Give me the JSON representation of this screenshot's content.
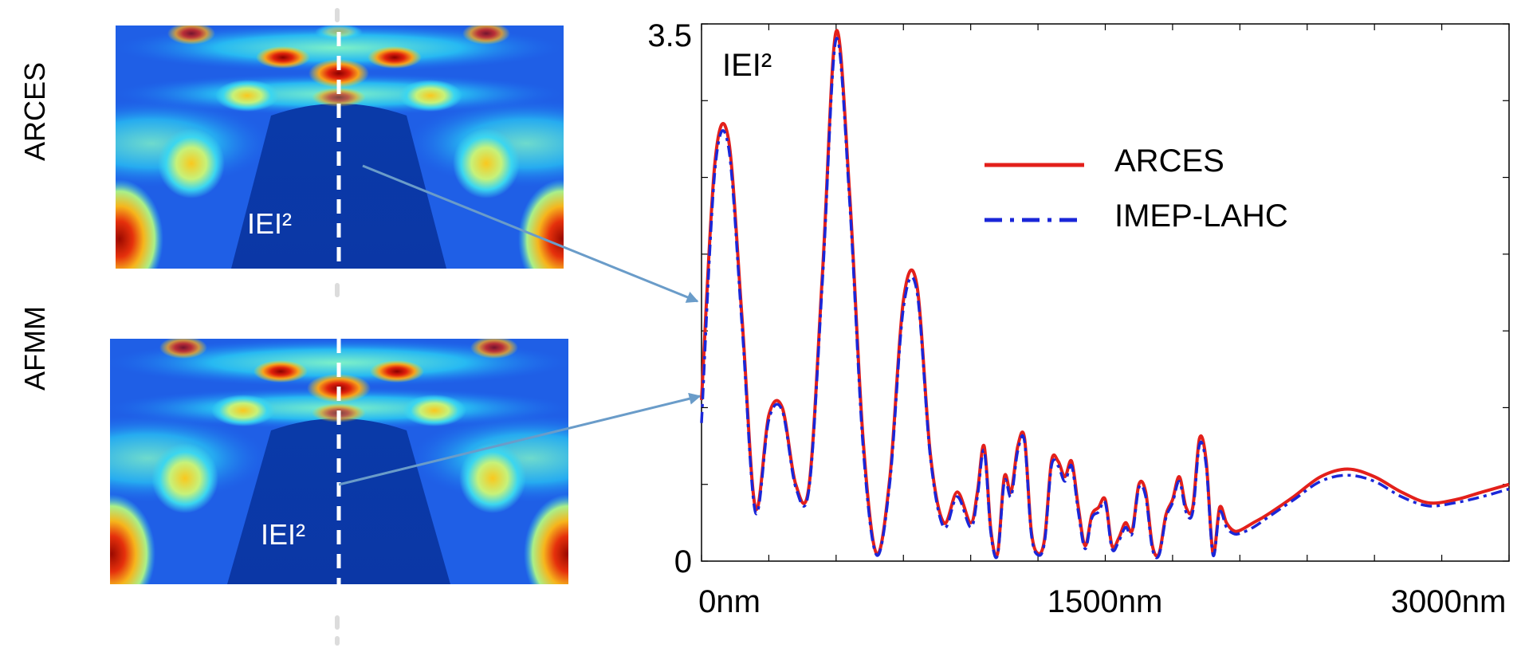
{
  "maps": [
    {
      "name": "ARCES",
      "label": "ARCES",
      "field_label": "IEI²"
    },
    {
      "name": "AFMM",
      "label": "AFMM",
      "field_label": "IEI²"
    }
  ],
  "colors": {
    "arces": "#e3201b",
    "imep": "#1a26d8",
    "arrow": "#6a9cc9",
    "cut_line": "#ffffff"
  },
  "chart_data": {
    "type": "line",
    "title": "",
    "ylabel": "IEI²",
    "xlabel": "",
    "ylim": [
      0,
      3.5
    ],
    "xlim": [
      0,
      3000
    ],
    "x_tick_labels": [
      {
        "value": 0,
        "label": "0nm"
      },
      {
        "value": 1500,
        "label": "1500nm"
      },
      {
        "value": 3000,
        "label": "3000nm"
      }
    ],
    "y_tick_labels": [
      {
        "value": 0,
        "label": "0"
      },
      {
        "value": 3.5,
        "label": "3.5"
      }
    ],
    "grid": false,
    "legend_position": "top-right",
    "series": [
      {
        "name": "ARCES",
        "style": "solid",
        "color": "#e3201b",
        "x": [
          0,
          50,
          100,
          150,
          200,
          250,
          300,
          350,
          400,
          450,
          500,
          550,
          600,
          650,
          700,
          750,
          800,
          850,
          900,
          950,
          1000,
          1025,
          1050,
          1075,
          1100,
          1125,
          1150,
          1175,
          1200,
          1225,
          1250,
          1275,
          1300,
          1325,
          1350,
          1375,
          1400,
          1425,
          1450,
          1475,
          1500,
          1525,
          1550,
          1575,
          1600,
          1625,
          1650,
          1675,
          1700,
          1725,
          1750,
          1775,
          1800,
          1825,
          1850,
          1875,
          1900,
          1925,
          1950,
          1975,
          2000,
          2050,
          2100,
          2200,
          2300,
          2400,
          2500,
          2600,
          2700,
          2800,
          2900,
          3000
        ],
        "y": [
          1.05,
          2.6,
          2.75,
          1.6,
          0.35,
          0.95,
          1.0,
          0.5,
          0.5,
          1.9,
          3.45,
          2.4,
          0.8,
          0.05,
          0.55,
          1.7,
          1.8,
          0.7,
          0.25,
          0.45,
          0.25,
          0.45,
          0.75,
          0.2,
          0.05,
          0.55,
          0.45,
          0.75,
          0.8,
          0.2,
          0.05,
          0.15,
          0.65,
          0.65,
          0.55,
          0.65,
          0.35,
          0.1,
          0.3,
          0.35,
          0.4,
          0.1,
          0.15,
          0.25,
          0.2,
          0.5,
          0.45,
          0.1,
          0.05,
          0.3,
          0.4,
          0.55,
          0.35,
          0.35,
          0.8,
          0.65,
          0.05,
          0.35,
          0.25,
          0.2,
          0.2,
          0.25,
          0.3,
          0.42,
          0.55,
          0.6,
          0.55,
          0.45,
          0.38,
          0.4,
          0.45,
          0.5
        ]
      },
      {
        "name": "IMEP-LAHC",
        "style": "dash-dot",
        "color": "#1a26d8",
        "x": [
          0,
          50,
          100,
          150,
          200,
          250,
          300,
          350,
          400,
          450,
          500,
          550,
          600,
          650,
          700,
          750,
          800,
          850,
          900,
          950,
          1000,
          1025,
          1050,
          1075,
          1100,
          1125,
          1150,
          1175,
          1200,
          1225,
          1250,
          1275,
          1300,
          1325,
          1350,
          1375,
          1400,
          1425,
          1450,
          1475,
          1500,
          1525,
          1550,
          1575,
          1600,
          1625,
          1650,
          1675,
          1700,
          1725,
          1750,
          1775,
          1800,
          1825,
          1850,
          1875,
          1900,
          1925,
          1950,
          1975,
          2000,
          2050,
          2100,
          2200,
          2300,
          2400,
          2500,
          2600,
          2700,
          2800,
          2900,
          3000
        ],
        "y": [
          0.9,
          2.55,
          2.7,
          1.55,
          0.32,
          0.92,
          0.98,
          0.48,
          0.48,
          1.85,
          3.4,
          2.35,
          0.75,
          0.04,
          0.52,
          1.65,
          1.76,
          0.68,
          0.22,
          0.42,
          0.22,
          0.42,
          0.72,
          0.18,
          0.04,
          0.52,
          0.42,
          0.72,
          0.78,
          0.18,
          0.04,
          0.13,
          0.62,
          0.62,
          0.52,
          0.62,
          0.32,
          0.08,
          0.28,
          0.32,
          0.38,
          0.08,
          0.13,
          0.22,
          0.18,
          0.48,
          0.42,
          0.08,
          0.04,
          0.28,
          0.38,
          0.52,
          0.32,
          0.32,
          0.76,
          0.62,
          0.04,
          0.32,
          0.22,
          0.18,
          0.18,
          0.22,
          0.28,
          0.4,
          0.52,
          0.56,
          0.52,
          0.42,
          0.36,
          0.38,
          0.42,
          0.47
        ]
      }
    ]
  }
}
